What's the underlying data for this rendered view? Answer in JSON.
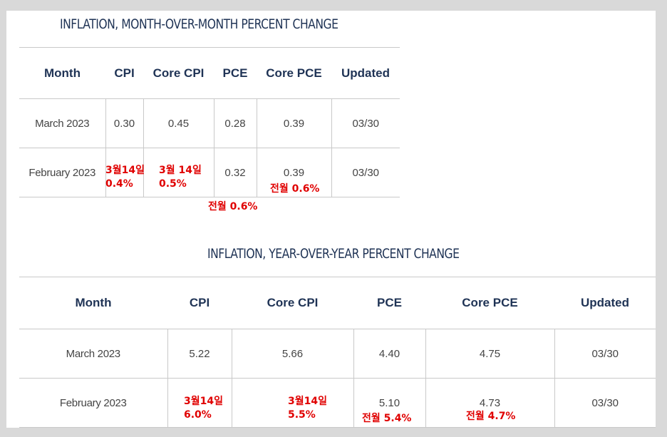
{
  "mom": {
    "title": "INFLATION, MONTH-OVER-MONTH PERCENT CHANGE",
    "headers": [
      "Month",
      "CPI",
      "Core CPI",
      "PCE",
      "Core PCE",
      "Updated"
    ],
    "rows": [
      [
        "March 2023",
        "0.30",
        "0.45",
        "0.28",
        "0.39",
        "03/30"
      ],
      [
        "February 2023",
        "",
        "",
        "0.32",
        "0.39",
        "03/30"
      ]
    ],
    "notes": {
      "cpi": "3월14일\n0.4%",
      "core_cpi": "3월 14일\n0.5%",
      "core_pce": "전월 0.6%",
      "pce": "전월 0.6%"
    }
  },
  "yoy": {
    "title": "INFLATION, YEAR-OVER-YEAR PERCENT CHANGE",
    "headers": [
      "Month",
      "CPI",
      "Core CPI",
      "PCE",
      "Core PCE",
      "Updated"
    ],
    "rows": [
      [
        "March 2023",
        "5.22",
        "5.66",
        "4.40",
        "4.75",
        "03/30"
      ],
      [
        "February 2023",
        "",
        "",
        "5.10",
        "4.73",
        "03/30"
      ]
    ],
    "notes": {
      "cpi": "3월14일\n6.0%",
      "core_cpi": "3월14일\n5.5%",
      "pce": "전월 5.4%",
      "core_pce": "전월 4.7%"
    }
  },
  "colors": {
    "heading": "#1f3355",
    "annotation": "#e00000",
    "border": "#c9c9c9"
  }
}
